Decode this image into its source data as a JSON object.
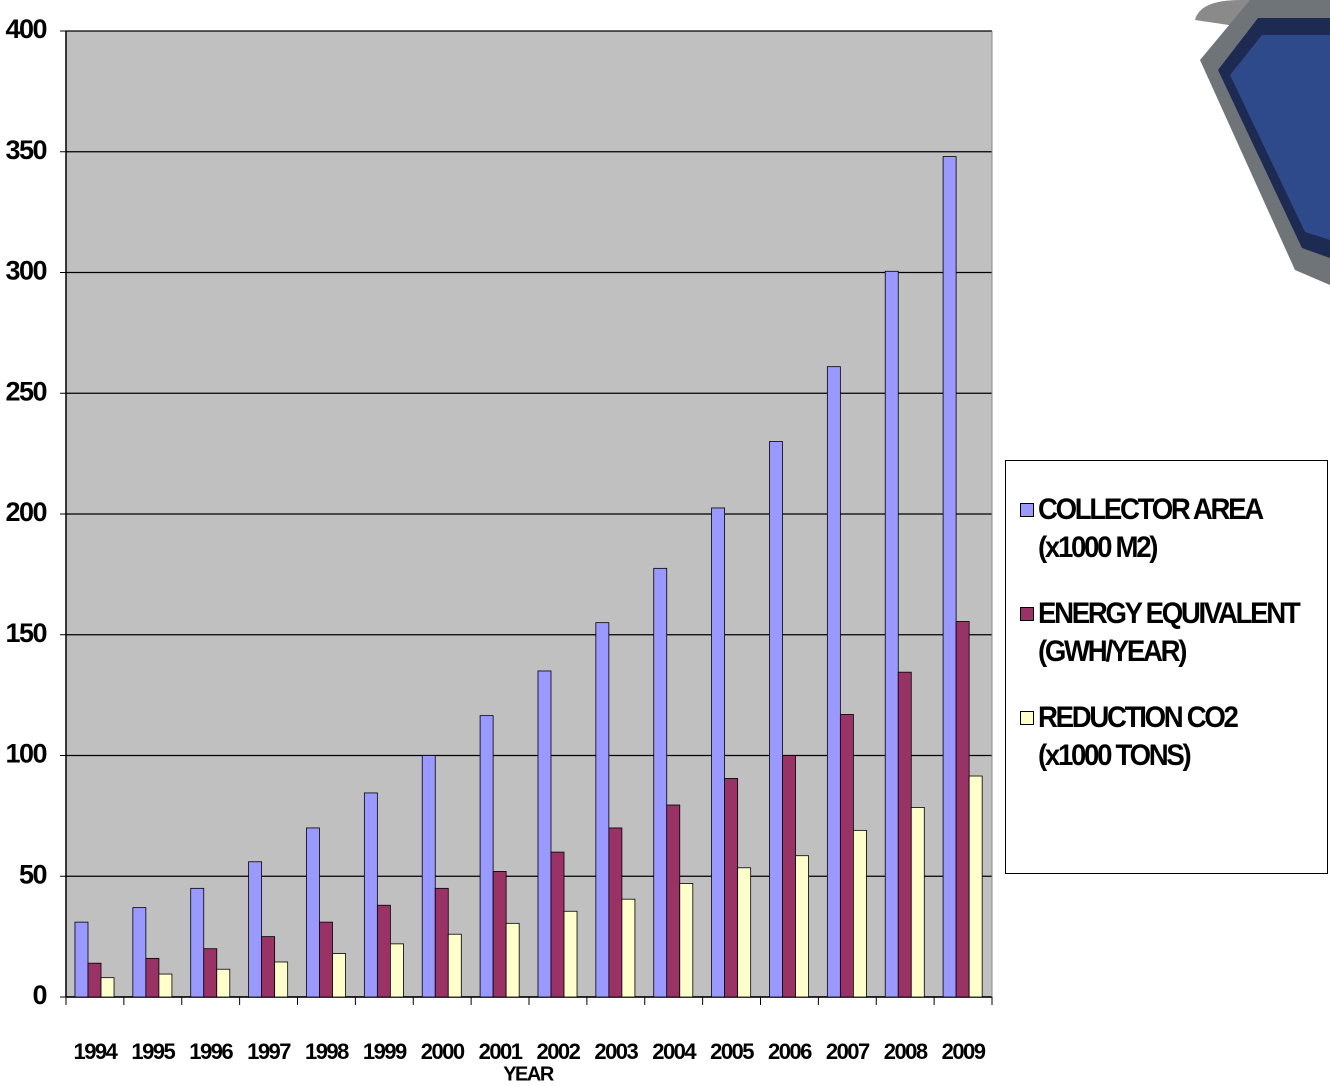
{
  "chart_data": {
    "type": "bar",
    "x_label": "YEAR",
    "categories": [
      "1994",
      "1995",
      "1996",
      "1997",
      "1998",
      "1999",
      "2000",
      "2001",
      "2002",
      "2003",
      "2004",
      "2005",
      "2006",
      "2007",
      "2008",
      "2009"
    ],
    "series": [
      {
        "name": "COLLECTOR AREA (x1000 M2)",
        "color": "#9999ff",
        "values": [
          31,
          37,
          45,
          56,
          70,
          84.5,
          100,
          116.5,
          135,
          155,
          177.5,
          202.5,
          230,
          261,
          300.5,
          348
        ]
      },
      {
        "name": "ENERGY EQUIVALENT (GWH/YEAR)",
        "color": "#993366",
        "values": [
          14,
          16,
          20,
          25,
          31,
          38,
          45,
          52,
          60,
          70,
          79.5,
          90.5,
          100,
          117,
          134.5,
          155.5
        ]
      },
      {
        "name": "REDUCTION CO2 (x1000 TONS)",
        "color": "#ffffcc",
        "values": [
          8,
          9.5,
          11.5,
          14.5,
          18,
          22,
          26,
          30.5,
          35.5,
          40.5,
          47,
          53.5,
          58.5,
          69,
          78.5,
          91.5
        ]
      }
    ],
    "ylim": [
      0,
      400
    ],
    "yticks": [
      0,
      50,
      100,
      150,
      200,
      250,
      300,
      350,
      400
    ],
    "grid": true,
    "plot_background": "#c0c0c0",
    "legend": "right"
  }
}
